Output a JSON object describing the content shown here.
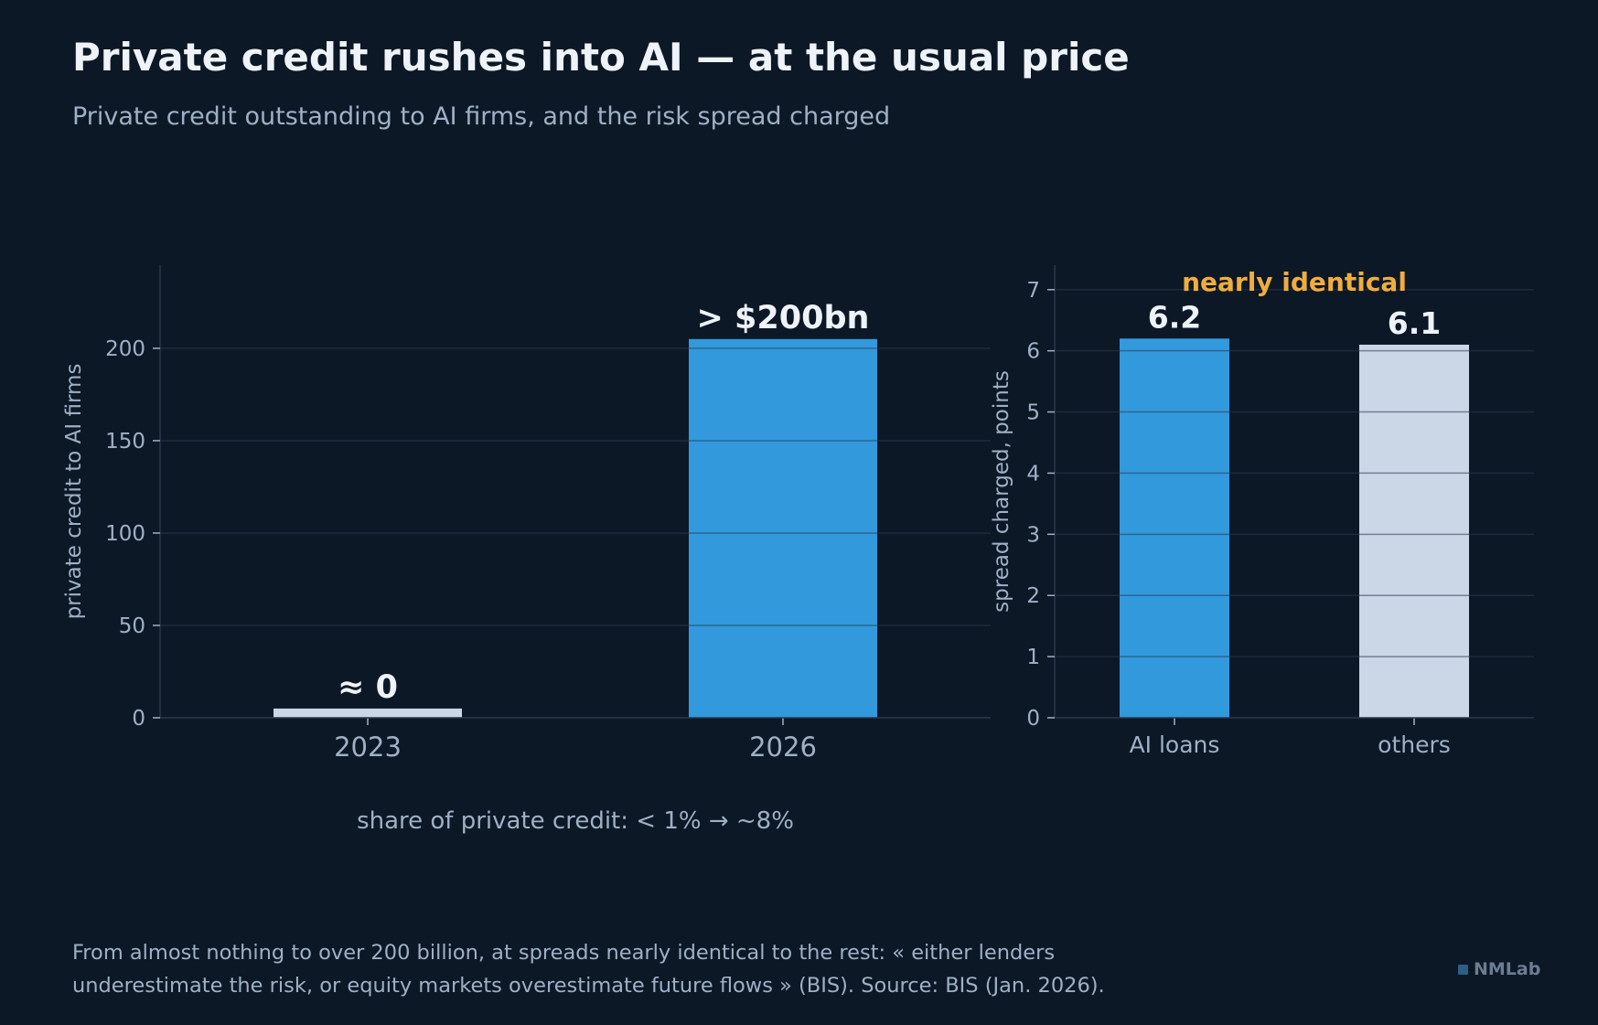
{
  "title": "Private credit rushes into AI — at the usual price",
  "subtitle": "Private credit outstanding to AI firms, and the risk spread charged",
  "footnote": [
    "From almost nothing to over 200 billion, at spreads nearly identical to the rest: « either lenders",
    "underestimate the risk, or equity markets overestimate future flows » (BIS). Source: BIS (Jan. 2026)."
  ],
  "brand": "NMLab",
  "colors": {
    "background": "#0d1826",
    "accent_blue": "#3399dd",
    "neutral_bar": "#cbd6e6",
    "annotation": "#f0ad3e",
    "text": "#eef3fa",
    "muted_text": "#9fb0c6",
    "grid": "#1e2a3b"
  },
  "chart_data": [
    {
      "type": "bar",
      "categories": [
        "2023",
        "2026"
      ],
      "values": [
        5,
        205
      ],
      "data_labels": [
        "≈ 0",
        "> $200bn"
      ],
      "bar_colors": [
        "#cbd6e6",
        "#3399dd"
      ],
      "ylabel": "private credit to AI firms",
      "yticks": [
        0,
        50,
        100,
        150,
        200
      ],
      "ylim": [
        0,
        245
      ],
      "grid": true,
      "annotation": "share of private credit: < 1%  →  ~8%"
    },
    {
      "type": "bar",
      "categories": [
        "AI loans",
        "others"
      ],
      "values": [
        6.2,
        6.1
      ],
      "data_labels": [
        "6.2",
        "6.1"
      ],
      "bar_colors": [
        "#3399dd",
        "#cbd6e6"
      ],
      "ylabel": "spread charged, points",
      "yticks": [
        0,
        1,
        2,
        3,
        4,
        5,
        6,
        7
      ],
      "ylim": [
        0,
        7.4
      ],
      "grid": true,
      "annotation": "nearly identical"
    }
  ]
}
